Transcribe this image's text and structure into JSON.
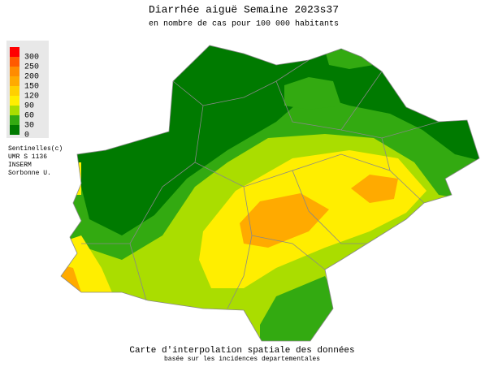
{
  "header": {
    "title": "Diarrhée aiguë Semaine 2023s37",
    "subtitle": "en nombre de cas pour 100 000 habitants"
  },
  "legend": {
    "levels": [
      300,
      250,
      200,
      150,
      120,
      90,
      60,
      30,
      0
    ],
    "colors": [
      "#ff0000",
      "#ff5a00",
      "#ff8c00",
      "#ffaa00",
      "#ffd000",
      "#ffee00",
      "#aadd00",
      "#33aa11",
      "#007a00"
    ]
  },
  "credits": [
    "Sentinelles(c)",
    "UMR S 1136",
    "INSERM",
    "Sorbonne U."
  ],
  "footer": {
    "caption": "Carte d'interpolation spatiale des données",
    "note": "basée sur les incidences departementales"
  }
}
